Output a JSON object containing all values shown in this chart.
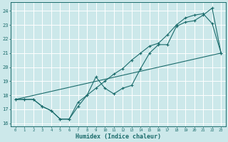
{
  "xlabel": "Humidex (Indice chaleur)",
  "bg_color": "#cce8ea",
  "grid_color": "#b8d8da",
  "line_color": "#1a6b6b",
  "xlim": [
    -0.5,
    23.5
  ],
  "ylim": [
    15.8,
    24.6
  ],
  "yticks": [
    16,
    17,
    18,
    19,
    20,
    21,
    22,
    23,
    24
  ],
  "xticks": [
    0,
    1,
    2,
    3,
    4,
    5,
    6,
    7,
    8,
    9,
    10,
    11,
    12,
    13,
    14,
    15,
    16,
    17,
    18,
    19,
    20,
    21,
    22,
    23
  ],
  "series1_x": [
    0,
    1,
    2,
    3,
    4,
    5,
    6,
    7,
    8,
    9,
    10,
    11,
    12,
    13,
    14,
    15,
    16,
    17,
    18,
    19,
    20,
    21,
    22,
    23
  ],
  "series1_y": [
    17.7,
    17.7,
    17.7,
    17.2,
    16.9,
    16.3,
    16.3,
    17.2,
    18.0,
    19.3,
    18.5,
    18.1,
    18.5,
    18.7,
    19.9,
    21.0,
    21.6,
    21.6,
    22.9,
    23.2,
    23.3,
    23.7,
    24.2,
    21.0
  ],
  "series2_x": [
    0,
    1,
    2,
    3,
    4,
    5,
    6,
    7,
    8,
    9,
    10,
    11,
    12,
    13,
    14,
    15,
    16,
    17,
    18,
    19,
    20,
    21,
    22,
    23
  ],
  "series2_y": [
    17.7,
    17.7,
    17.7,
    17.2,
    16.9,
    16.3,
    16.3,
    17.5,
    18.0,
    18.5,
    19.0,
    19.5,
    19.9,
    20.5,
    21.0,
    21.5,
    21.7,
    22.3,
    23.0,
    23.5,
    23.7,
    23.8,
    23.1,
    21.0
  ],
  "series3_x": [
    0,
    23
  ],
  "series3_y": [
    17.7,
    21.0
  ]
}
